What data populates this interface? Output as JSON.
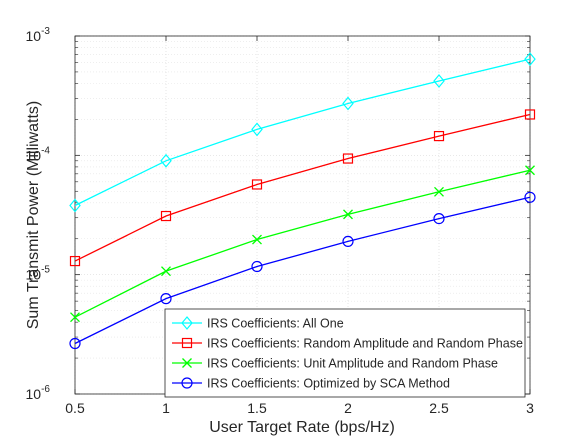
{
  "chart_data": {
    "type": "line",
    "title": "",
    "xlabel": "User Target Rate (bps/Hz)",
    "ylabel": "Sum Transmit Power (Milliwatts)",
    "x": [
      0.5,
      1,
      1.5,
      2,
      2.5,
      3
    ],
    "xlim": [
      0.5,
      3
    ],
    "ylim": [
      1e-06,
      0.001
    ],
    "yscale": "log",
    "xticks": [
      0.5,
      1,
      1.5,
      2,
      2.5,
      3
    ],
    "xtick_labels": [
      "0.5",
      "1",
      "1.5",
      "2",
      "2.5",
      "3"
    ],
    "ytick_exponents": [
      -6,
      -5,
      -4,
      -3
    ],
    "ytick_base": "10",
    "grid": true,
    "minor_grid": true,
    "legend_location": "bottom-right",
    "series": [
      {
        "name": "IRS Coefficients: All One",
        "color": "#00ffff",
        "marker": "diamond",
        "values": [
          3.8e-05,
          9e-05,
          0.000165,
          0.000272,
          0.00042,
          0.00064
        ]
      },
      {
        "name": "IRS Coefficients: Random Amplitude and Random Phase",
        "color": "#ff0000",
        "marker": "square",
        "values": [
          1.3e-05,
          3.1e-05,
          5.7e-05,
          9.4e-05,
          0.000145,
          0.00022
        ]
      },
      {
        "name": "IRS Coefficients: Unit Amplitude and Random Phase",
        "color": "#00ff00",
        "marker": "x",
        "values": [
          4.4e-06,
          1.07e-05,
          1.97e-05,
          3.2e-05,
          4.95e-05,
          7.5e-05
        ]
      },
      {
        "name": "IRS Coefficients: Optimized by SCA Method",
        "color": "#0000ff",
        "marker": "circle",
        "values": [
          2.65e-06,
          6.3e-06,
          1.17e-05,
          1.9e-05,
          2.95e-05,
          4.45e-05
        ]
      }
    ]
  }
}
